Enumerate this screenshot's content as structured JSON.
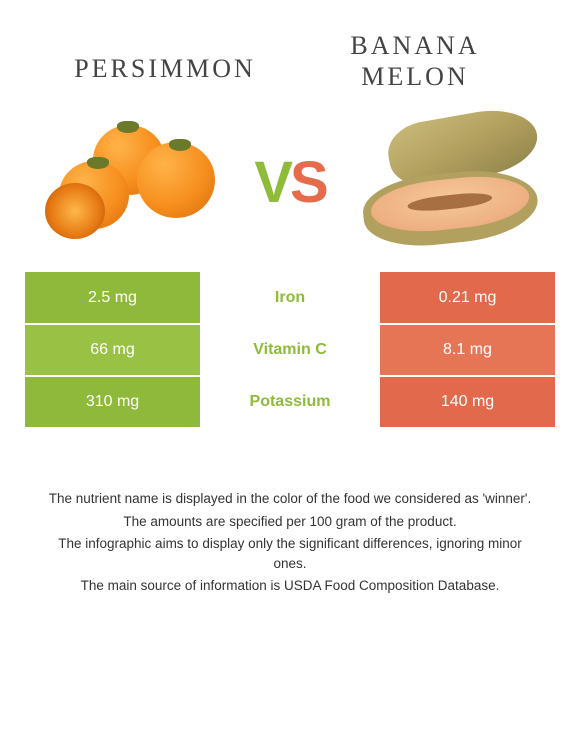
{
  "left_food": {
    "title": "persimmon",
    "color": "#8fbb3a"
  },
  "right_food": {
    "title": "banana melon",
    "color": "#e56b4b"
  },
  "vs": {
    "v": "V",
    "s": "S"
  },
  "nutrients": [
    {
      "name": "Iron",
      "left": "2.5 mg",
      "right": "0.21 mg",
      "winner": "left"
    },
    {
      "name": "Vitamin C",
      "left": "66 mg",
      "right": "8.1 mg",
      "winner": "left"
    },
    {
      "name": "Potassium",
      "left": "310 mg",
      "right": "140 mg",
      "winner": "left"
    }
  ],
  "row_shades": {
    "left": [
      "#8fb93a",
      "#99c144",
      "#8fb93a"
    ],
    "right": [
      "#e2694b",
      "#e67556",
      "#e2694b"
    ]
  },
  "footnotes": [
    "The nutrient name is displayed in the color of the food we considered as 'winner'.",
    "The amounts are specified per 100 gram of the product.",
    "The infographic aims to display only the significant differences, ignoring minor ones.",
    "The main source of information is USDA Food Composition Database."
  ]
}
